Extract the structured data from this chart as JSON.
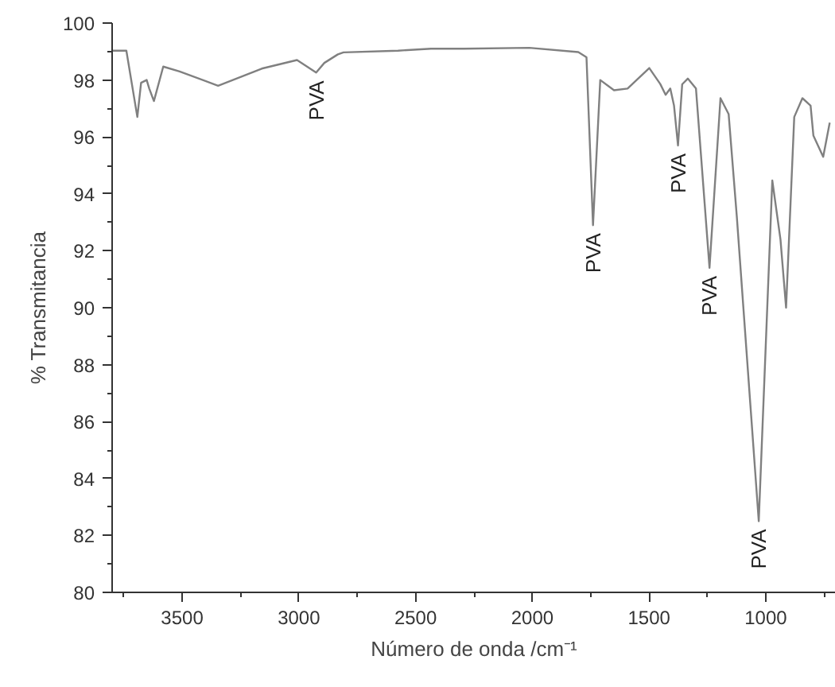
{
  "chart_data": {
    "type": "line",
    "xlabel": "Número de onda /cm⁻¹",
    "ylabel": "% Transmitancia",
    "x": [
      3797,
      3739,
      3692,
      3676,
      3652,
      3641,
      3621,
      3581,
      3511,
      3346,
      3159,
      3008,
      2926,
      2891,
      2833,
      2809,
      2575,
      2434,
      2294,
      2013,
      1803,
      1768,
      1740,
      1709,
      1650,
      1592,
      1499,
      1452,
      1429,
      1409,
      1393,
      1376,
      1358,
      1334,
      1299,
      1241,
      1194,
      1159,
      1124,
      1030,
      972,
      937,
      913,
      878,
      843,
      808,
      796,
      754,
      726
    ],
    "series": [
      {
        "color": "#808080",
        "values": [
          99.03,
          99.03,
          96.7,
          97.9,
          98.0,
          97.7,
          97.26,
          98.47,
          98.3,
          97.8,
          98.4,
          98.7,
          98.26,
          98.6,
          98.9,
          98.97,
          99.03,
          99.1,
          99.1,
          99.13,
          98.98,
          98.8,
          92.9,
          98.0,
          97.64,
          97.7,
          98.42,
          97.86,
          97.48,
          97.7,
          97.1,
          95.7,
          97.85,
          98.05,
          97.7,
          91.4,
          97.36,
          96.8,
          93.2,
          82.5,
          94.47,
          92.4,
          90.0,
          96.7,
          97.36,
          97.1,
          96.05,
          95.3,
          96.5
        ]
      }
    ],
    "xlim": [
      3800,
      700
    ],
    "ylim": [
      80,
      100
    ],
    "xticks": [
      3500,
      3000,
      2500,
      2000,
      1500,
      1000
    ],
    "yticks": [
      80,
      82,
      84,
      86,
      88,
      90,
      92,
      94,
      96,
      98,
      100
    ],
    "grid": false,
    "annotations": [
      {
        "text": "PVA",
        "x": 2926,
        "y": 98.26
      },
      {
        "text": "PVA",
        "x": 1740,
        "y": 92.9
      },
      {
        "text": "PVA",
        "x": 1376,
        "y": 95.7
      },
      {
        "text": "PVA",
        "x": 1241,
        "y": 91.4
      },
      {
        "text": "PVA",
        "x": 1030,
        "y": 82.5
      }
    ]
  }
}
